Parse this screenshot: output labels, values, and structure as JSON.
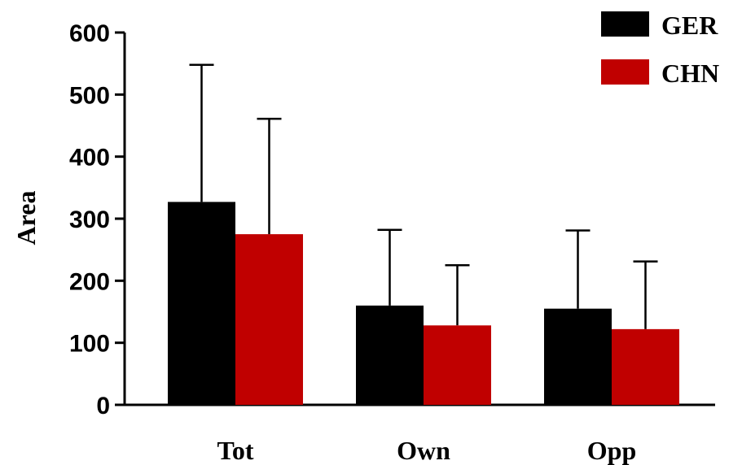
{
  "chart_data": {
    "type": "bar",
    "title": "",
    "xlabel": "",
    "ylabel": "Area",
    "ylim": [
      0,
      600
    ],
    "yticks": [
      "0",
      "100",
      "200",
      "300",
      "400",
      "500",
      "600"
    ],
    "categories": [
      "Tot",
      "Own",
      "Opp"
    ],
    "series": [
      {
        "name": "GER",
        "color": "#000000",
        "values": [
          327,
          160,
          155
        ],
        "error_upper": [
          548,
          282,
          281
        ]
      },
      {
        "name": "CHN",
        "color": "#c00000",
        "values": [
          275,
          128,
          122
        ],
        "error_upper": [
          461,
          225,
          231
        ]
      }
    ],
    "error_bars": "upper",
    "grid": false,
    "legend": "top-right"
  }
}
